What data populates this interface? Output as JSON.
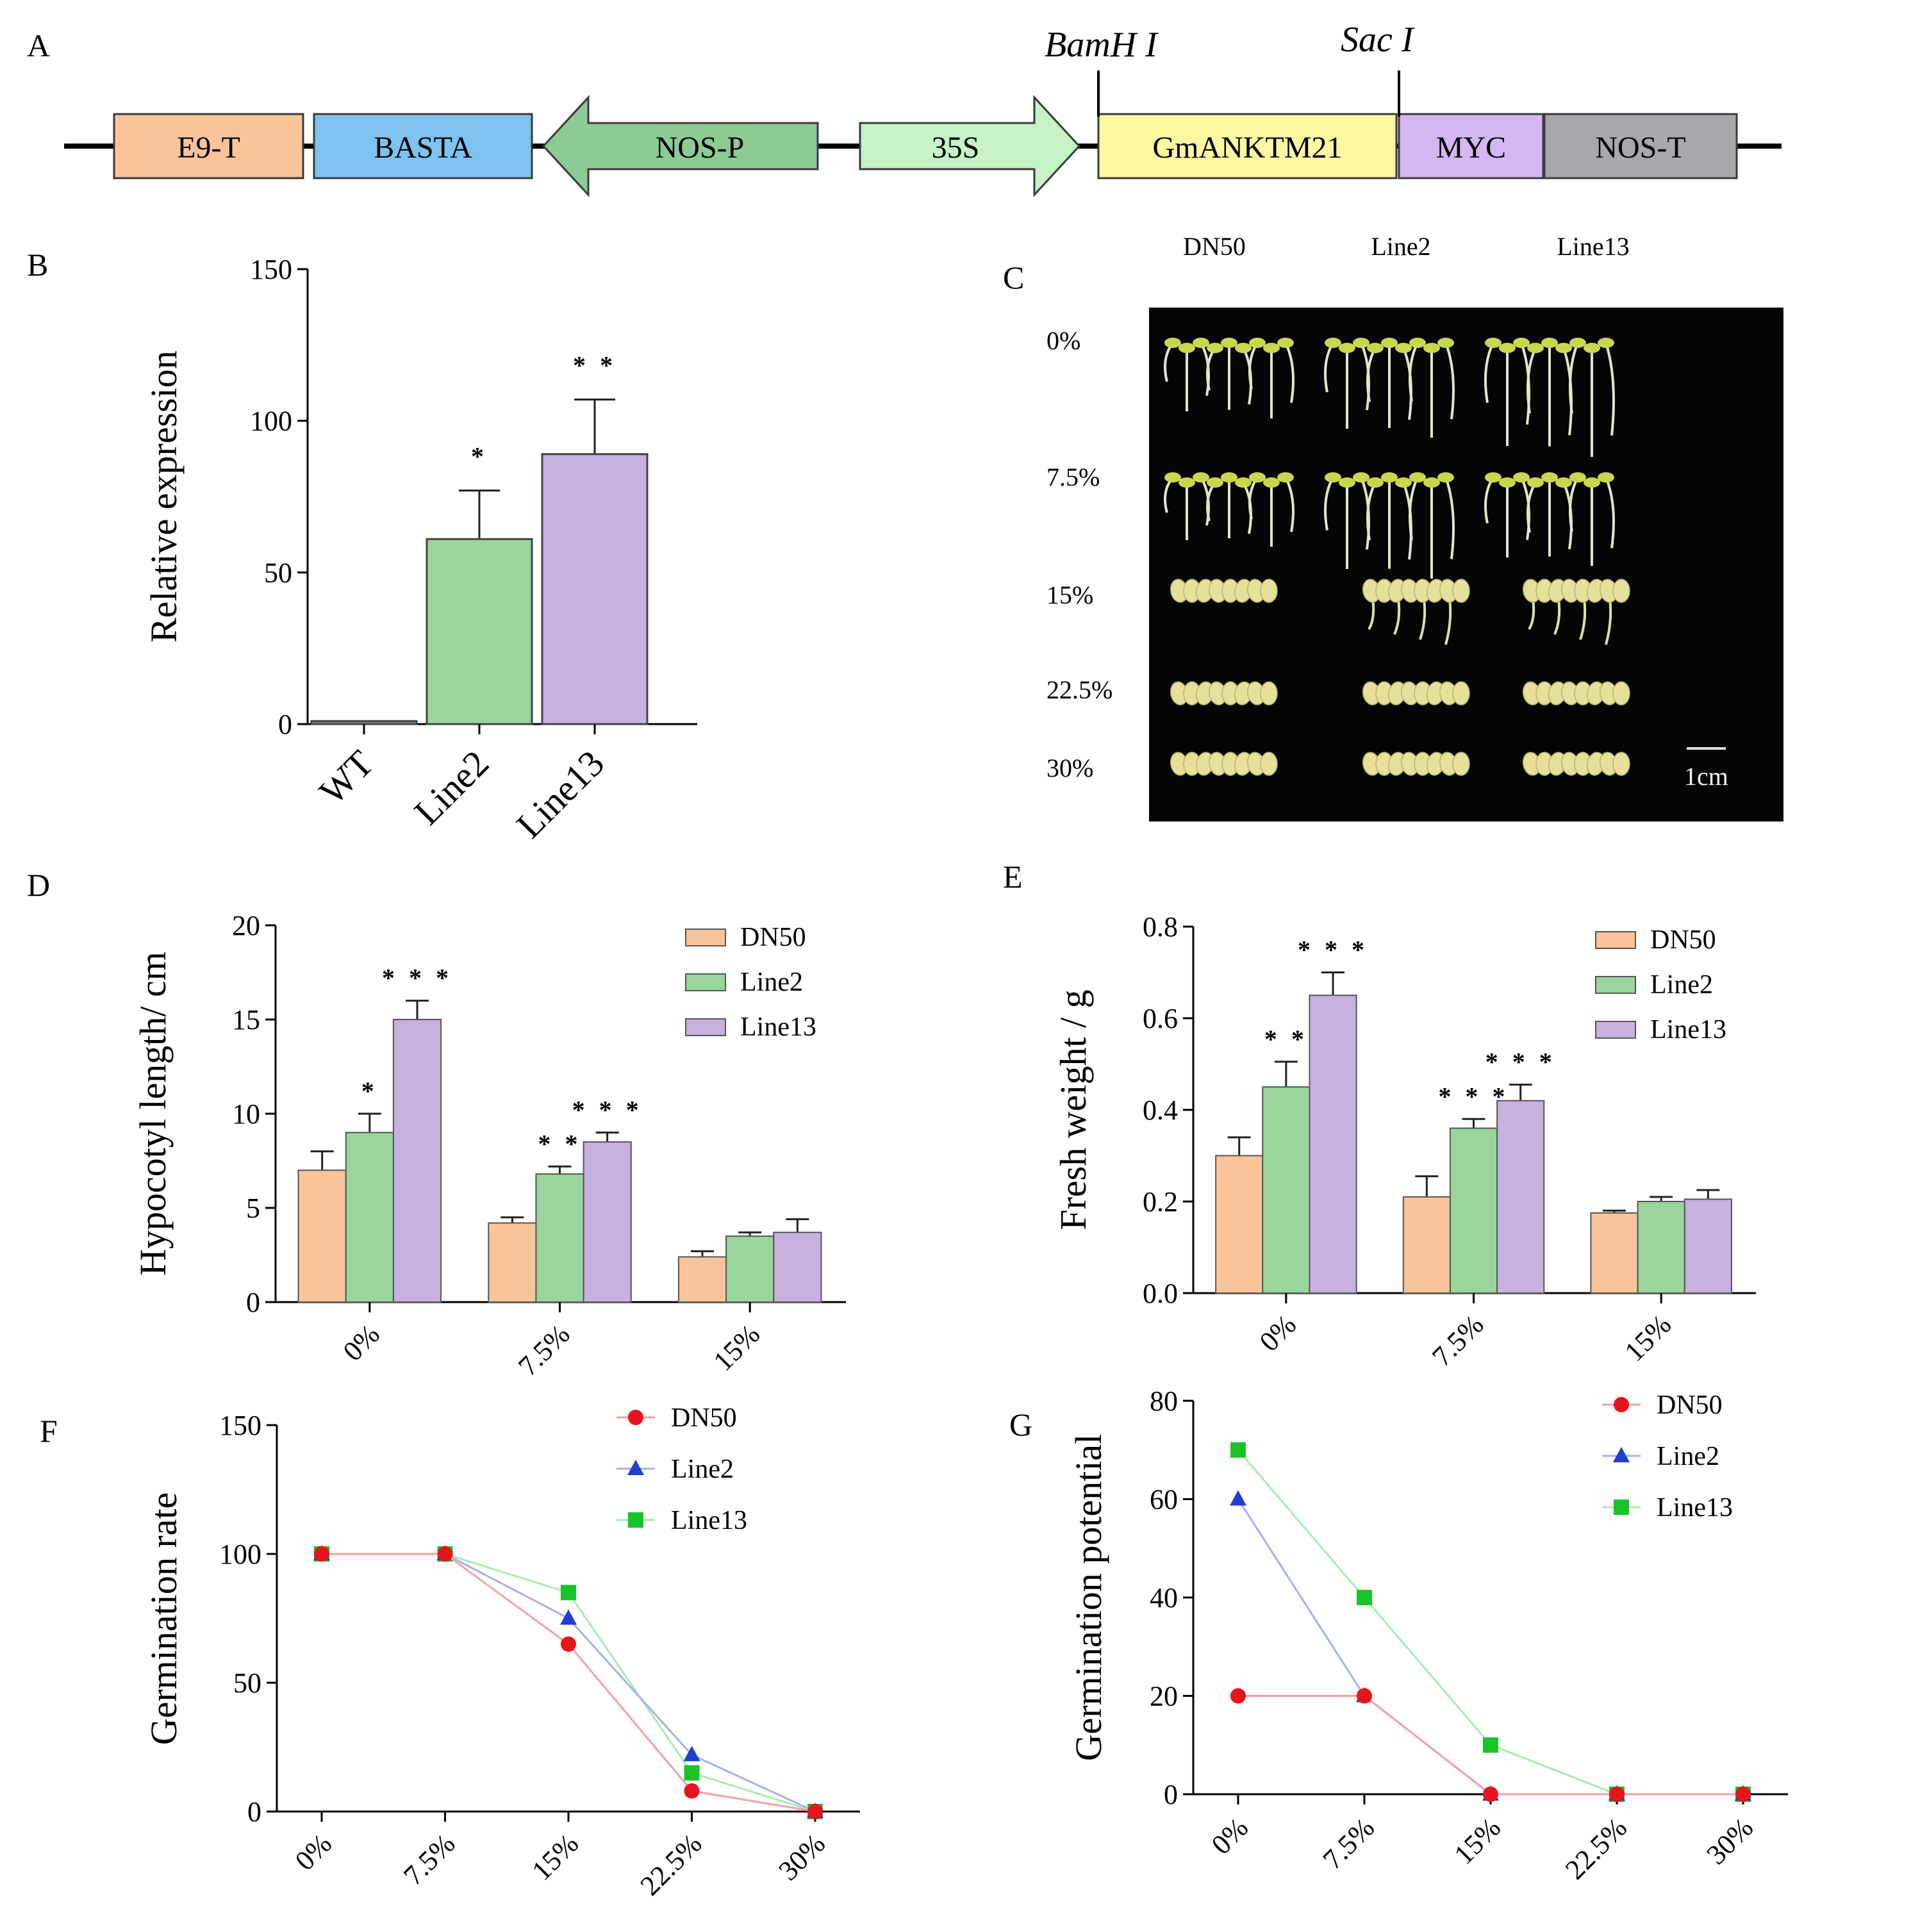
{
  "panels": {
    "A": "A",
    "B": "B",
    "C": "C",
    "D": "D",
    "E": "E",
    "F": "F",
    "G": "G"
  },
  "construct": {
    "sites": [
      "BamH I",
      "Sac I"
    ],
    "segments": [
      {
        "label": "E9-T",
        "color": "#f9c49a",
        "shape": "box"
      },
      {
        "label": "BASTA",
        "color": "#7ec3ef",
        "shape": "box"
      },
      {
        "label": "NOS-P",
        "color": "#8ccb94",
        "shape": "arrow-left"
      },
      {
        "label": "35S",
        "color": "#c5f3c6",
        "shape": "arrow-right"
      },
      {
        "label": "GmANKTM21",
        "color": "#fdf7a1",
        "shape": "box"
      },
      {
        "label": "MYC",
        "color": "#d4b6f2",
        "shape": "box"
      },
      {
        "label": "NOS-T",
        "color": "#a6a8ac",
        "shape": "box"
      }
    ]
  },
  "photo": {
    "columns": [
      "DN50",
      "Line2",
      "Line13"
    ],
    "rows": [
      "0%",
      "7.5%",
      "15%",
      "22.5%",
      "30%"
    ],
    "scale_label": "1cm"
  },
  "colors": {
    "dn50_bar": "#f9c49a",
    "line2_bar": "#9ad69c",
    "line13_bar": "#c6b1df",
    "dn50_line": "#e8141c",
    "line2_line": "#1f3fd1",
    "line13_line": "#19c42a",
    "dn50_linefill": "#f4a0a4",
    "line2_linefill": "#a6b0ee",
    "line13_linefill": "#a8ecaf"
  },
  "chart_data": [
    {
      "id": "B",
      "type": "bar",
      "categories": [
        "WT",
        "Line2",
        "Line13"
      ],
      "values": [
        1,
        61,
        89
      ],
      "errors": [
        0,
        16,
        18
      ],
      "significance": [
        "",
        "*",
        "* *"
      ],
      "ylabel": "Relative expression",
      "ylim": [
        0,
        150
      ],
      "yticks": [
        0,
        50,
        100,
        150
      ]
    },
    {
      "id": "D",
      "type": "bar",
      "categories": [
        "0%",
        "7.5%",
        "15%"
      ],
      "series": [
        {
          "name": "DN50",
          "values": [
            7.0,
            4.2,
            2.4
          ],
          "errors": [
            1.0,
            0.3,
            0.3
          ],
          "significance": [
            "",
            "",
            ""
          ]
        },
        {
          "name": "Line2",
          "values": [
            9.0,
            6.8,
            3.5
          ],
          "errors": [
            1.0,
            0.4,
            0.2
          ],
          "significance": [
            "*",
            "* *",
            ""
          ]
        },
        {
          "name": "Line13",
          "values": [
            15.0,
            8.5,
            3.7
          ],
          "errors": [
            1.0,
            0.5,
            0.7
          ],
          "significance": [
            "* * *",
            "* * *",
            ""
          ]
        }
      ],
      "ylabel": "Hypocotyl length/ cm",
      "ylim": [
        0,
        20
      ],
      "yticks": [
        0,
        5,
        10,
        15,
        20
      ],
      "legend": "top-right"
    },
    {
      "id": "E",
      "type": "bar",
      "categories": [
        "0%",
        "7.5%",
        "15%"
      ],
      "series": [
        {
          "name": "DN50",
          "values": [
            0.3,
            0.21,
            0.175
          ],
          "errors": [
            0.04,
            0.045,
            0.005
          ],
          "significance": [
            "",
            "",
            ""
          ]
        },
        {
          "name": "Line2",
          "values": [
            0.45,
            0.36,
            0.2
          ],
          "errors": [
            0.055,
            0.02,
            0.01
          ],
          "significance": [
            "* *",
            "* * *",
            ""
          ]
        },
        {
          "name": "Line13",
          "values": [
            0.65,
            0.42,
            0.205
          ],
          "errors": [
            0.05,
            0.035,
            0.02
          ],
          "significance": [
            "* * *",
            "* * *",
            ""
          ]
        }
      ],
      "ylabel": "Fresh weight / g",
      "ylim": [
        0,
        0.8
      ],
      "yticks": [
        "0.0",
        "0.2",
        "0.4",
        "0.6",
        "0.8"
      ],
      "legend": "top-right"
    },
    {
      "id": "F",
      "type": "line",
      "x": [
        "0%",
        "7.5%",
        "15%",
        "22.5%",
        "30%"
      ],
      "series": [
        {
          "name": "DN50",
          "marker": "circle",
          "values": [
            100,
            100,
            65,
            8,
            0
          ]
        },
        {
          "name": "Line2",
          "marker": "triangle",
          "values": [
            100,
            100,
            75,
            22,
            0
          ]
        },
        {
          "name": "Line13",
          "marker": "square",
          "values": [
            100,
            100,
            85,
            15,
            0
          ]
        }
      ],
      "ylabel": "Germination rate",
      "ylim": [
        0,
        150
      ],
      "yticks": [
        0,
        50,
        100,
        150
      ],
      "legend": "top-right"
    },
    {
      "id": "G",
      "type": "line",
      "x": [
        "0%",
        "7.5%",
        "15%",
        "22.5%",
        "30%"
      ],
      "series": [
        {
          "name": "DN50",
          "marker": "circle",
          "values": [
            20,
            20,
            0,
            0,
            0
          ]
        },
        {
          "name": "Line2",
          "marker": "triangle",
          "values": [
            60,
            20,
            0,
            0,
            0
          ]
        },
        {
          "name": "Line13",
          "marker": "square",
          "values": [
            70,
            40,
            10,
            0,
            0
          ]
        }
      ],
      "ylabel": "Germination potential",
      "ylim": [
        0,
        80
      ],
      "yticks": [
        0,
        20,
        40,
        60,
        80
      ],
      "legend": "top-right"
    }
  ]
}
